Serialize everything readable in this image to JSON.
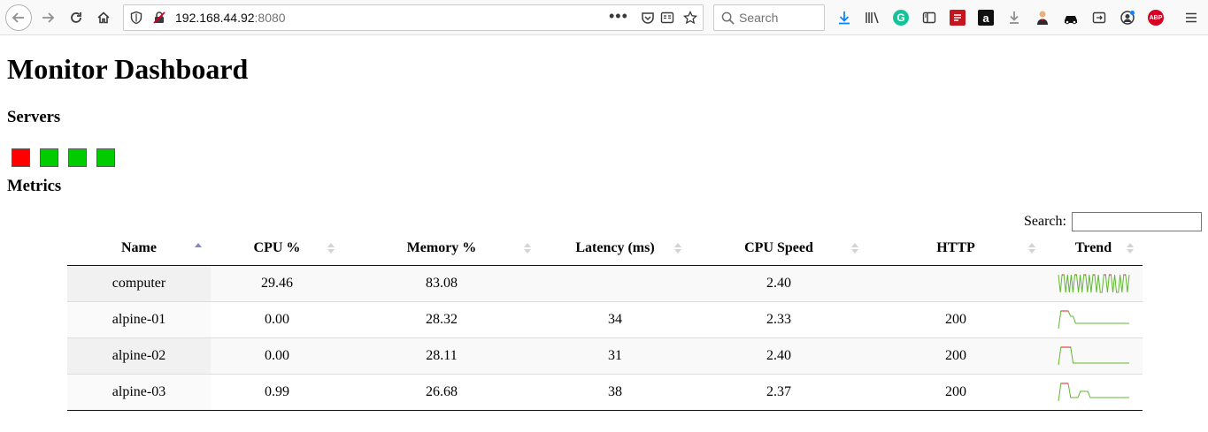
{
  "browser": {
    "url_host": "192.168.44.92",
    "url_port": ":8080",
    "search_placeholder": "Search",
    "abp_label": "ABP"
  },
  "page": {
    "title": "Monitor Dashboard",
    "servers_heading": "Servers",
    "metrics_heading": "Metrics",
    "search_label": "Search:",
    "search_value": ""
  },
  "servers": [
    {
      "status": "down",
      "color": "#ff0000"
    },
    {
      "status": "up",
      "color": "#00cc00"
    },
    {
      "status": "up",
      "color": "#00cc00"
    },
    {
      "status": "up",
      "color": "#00cc00"
    }
  ],
  "table": {
    "columns": [
      "Name",
      "CPU %",
      "Memory %",
      "Latency (ms)",
      "CPU Speed",
      "HTTP",
      "Trend"
    ],
    "sorted_column": "Name",
    "sort_direction": "ascending",
    "rows": [
      {
        "name": "computer",
        "cpu": "29.46",
        "memory": "83.08",
        "latency": "",
        "cpu_speed": "2.40",
        "http": "",
        "trend": [
          1,
          0,
          1,
          1,
          0,
          1,
          0,
          1,
          0,
          1,
          1,
          0,
          1,
          0,
          1,
          1,
          0,
          1,
          0,
          1,
          1,
          0,
          1,
          0,
          0,
          1,
          1,
          0,
          1,
          1,
          0,
          1,
          0,
          0,
          1,
          0,
          1,
          1,
          0,
          1
        ]
      },
      {
        "name": "alpine-01",
        "cpu": "0.00",
        "memory": "28.32",
        "latency": "34",
        "cpu_speed": "2.33",
        "http": "200",
        "trend": [
          0,
          1,
          1,
          1,
          1,
          0.7,
          0.7,
          0.3,
          0.3,
          0.3,
          0.3,
          0.3,
          0.3,
          0.3,
          0.3,
          0.3,
          0.3,
          0.3,
          0.3,
          0.3,
          0.3,
          0.3,
          0.3,
          0.3,
          0.3,
          0.3,
          0.3,
          0.3,
          0.3,
          0.3
        ]
      },
      {
        "name": "alpine-02",
        "cpu": "0.00",
        "memory": "28.11",
        "latency": "31",
        "cpu_speed": "2.40",
        "http": "200",
        "trend": [
          0,
          1,
          1,
          1,
          1,
          1,
          0.1,
          0.1,
          0.1,
          0.1,
          0.1,
          0.1,
          0.1,
          0.1,
          0.1,
          0.1,
          0.1,
          0.1,
          0.1,
          0.1,
          0.1,
          0.1,
          0.1,
          0.1,
          0.1,
          0.1,
          0.1,
          0.1,
          0.1,
          0.1
        ]
      },
      {
        "name": "alpine-03",
        "cpu": "0.99",
        "memory": "26.68",
        "latency": "38",
        "cpu_speed": "2.37",
        "http": "200",
        "trend": [
          0,
          1,
          1,
          1,
          1,
          0.2,
          0.2,
          0.2,
          0.2,
          0.55,
          0.55,
          0.55,
          0.55,
          0.2,
          0.2,
          0.2,
          0.2,
          0.2,
          0.2,
          0.2,
          0.2,
          0.2,
          0.2,
          0.2,
          0.2,
          0.2,
          0.2,
          0.2,
          0.2,
          0.2
        ]
      }
    ]
  },
  "colors": {
    "trend_line": "#5fb830",
    "trend_spike": "#e02020"
  }
}
